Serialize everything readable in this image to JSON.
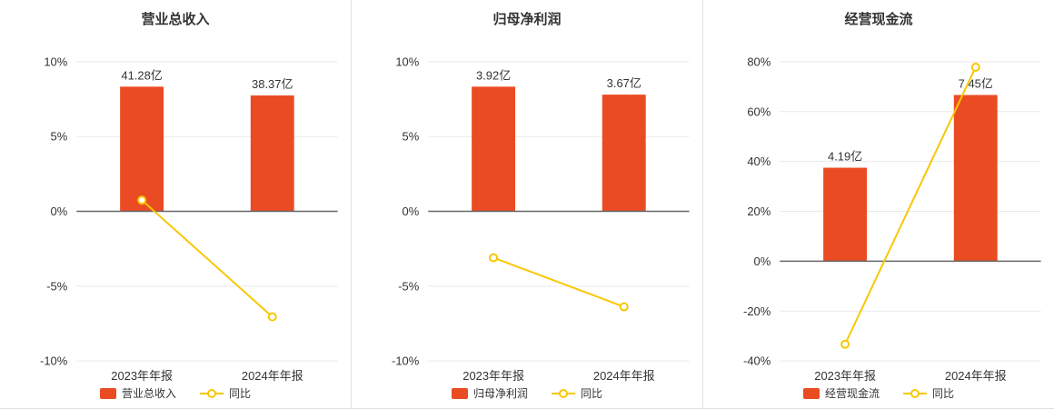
{
  "colors": {
    "bar": "#ea4b22",
    "line": "#f9c700",
    "axis_zero": "#666666",
    "grid": "#e9e9e9",
    "text": "#333333",
    "marker_fill": "#ffffff"
  },
  "chart_data": [
    {
      "type": "bar",
      "title": "营业总收入",
      "categories": [
        "2023年年报",
        "2024年年报"
      ],
      "bar_series": {
        "name": "营业总收入",
        "values": [
          41.28,
          38.37
        ],
        "labels": [
          "41.28亿",
          "38.37亿"
        ],
        "unit": "亿"
      },
      "line_series": {
        "name": "同比",
        "values_pct": [
          0.75,
          -7.05
        ]
      },
      "ylim": [
        -10,
        10
      ],
      "ytick_step": 5,
      "ytick_suffix": "%",
      "grid_on": true,
      "legend_position": "bottom"
    },
    {
      "type": "bar",
      "title": "归母净利润",
      "categories": [
        "2023年年报",
        "2024年年报"
      ],
      "bar_series": {
        "name": "归母净利润",
        "values": [
          3.92,
          3.67
        ],
        "labels": [
          "3.92亿",
          "3.67亿"
        ],
        "unit": "亿"
      },
      "line_series": {
        "name": "同比",
        "values_pct": [
          -3.1,
          -6.38
        ]
      },
      "ylim": [
        -10,
        10
      ],
      "ytick_step": 5,
      "ytick_suffix": "%",
      "grid_on": true,
      "legend_position": "bottom"
    },
    {
      "type": "bar",
      "title": "经营现金流",
      "categories": [
        "2023年年报",
        "2024年年报"
      ],
      "bar_series": {
        "name": "经营现金流",
        "values": [
          4.19,
          7.45
        ],
        "labels": [
          "4.19亿",
          "7.45亿"
        ],
        "unit": "亿"
      },
      "line_series": {
        "name": "同比",
        "values_pct": [
          -33.3,
          77.8
        ]
      },
      "ylim": [
        -40,
        80
      ],
      "ytick_step": 20,
      "ytick_suffix": "%",
      "grid_on": true,
      "legend_position": "bottom"
    }
  ]
}
